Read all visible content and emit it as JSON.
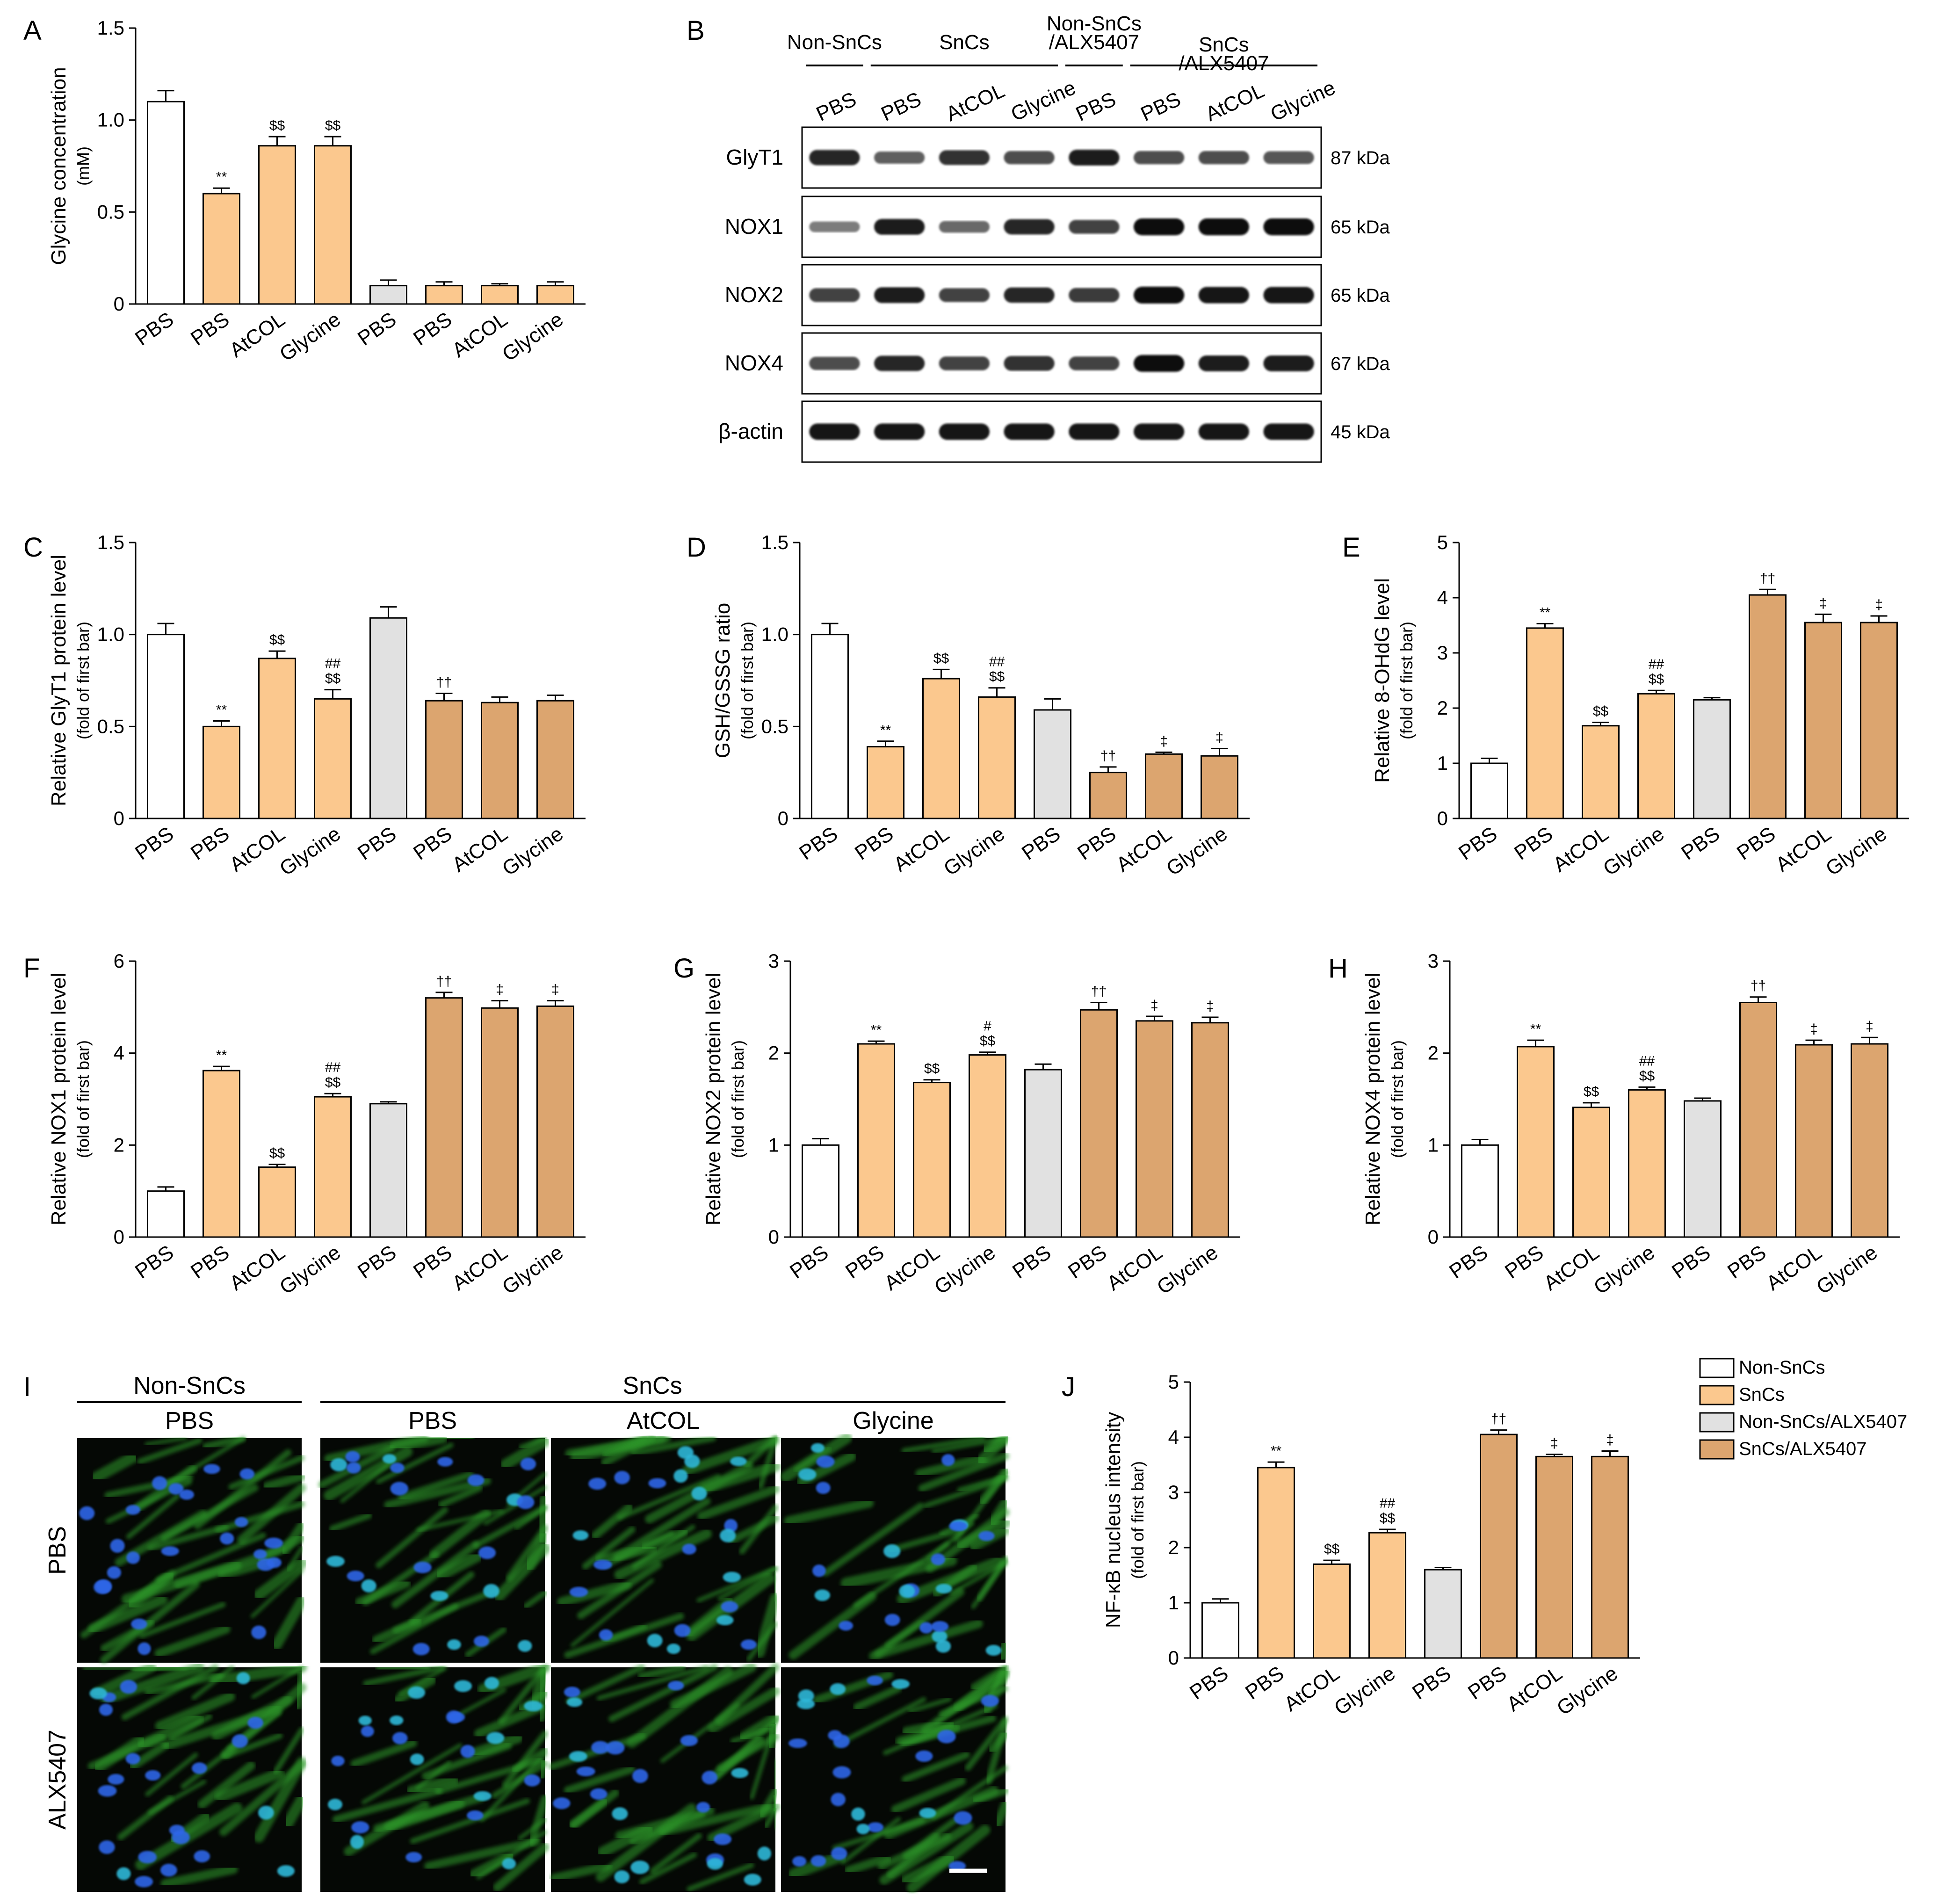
{
  "colors": {
    "nonsncs": "#ffffff",
    "sncs": "#fbc88e",
    "nonsncs_alx": "#e1e1e1",
    "sncs_alx": "#dca56f",
    "green_stain": "#2f9b2a",
    "nucleus": "#2f66e8",
    "stroke": "#000000"
  },
  "panel_letters": [
    "A",
    "B",
    "C",
    "D",
    "E",
    "F",
    "G",
    "H",
    "I",
    "J"
  ],
  "bar_labels": [
    "PBS",
    "PBS",
    "AtCOL",
    "Glycine",
    "PBS",
    "PBS",
    "AtCOL",
    "Glycine"
  ],
  "legend": {
    "entries": [
      "Non-SnCs",
      "SnCs",
      "Non-SnCs/ALX5407",
      "SnCs/ALX5407"
    ],
    "position": "top-right of panel J"
  },
  "chart_data": [
    {
      "panel": "A",
      "type": "bar",
      "ylabel": "Glycine concentration",
      "ylabel2": "(mM)",
      "ylim": [
        0,
        1.5
      ],
      "yticks": [
        "0",
        "0.5",
        "1.0",
        "1.5"
      ],
      "categories": [
        "PBS",
        "PBS",
        "AtCOL",
        "Glycine",
        "PBS",
        "PBS",
        "AtCOL",
        "Glycine"
      ],
      "values": [
        1.1,
        0.6,
        0.86,
        0.86,
        0.1,
        0.1,
        0.1,
        0.1
      ],
      "errors": [
        0.06,
        0.03,
        0.05,
        0.05,
        0.03,
        0.02,
        0.01,
        0.02
      ],
      "groups": [
        "nonsncs",
        "sncs",
        "sncs",
        "sncs",
        "nonsncs_alx",
        "sncs",
        "sncs",
        "sncs"
      ],
      "annotations": [
        {
          "bar": 1,
          "lines": [
            "**"
          ]
        },
        {
          "bar": 2,
          "lines": [
            "$$"
          ]
        },
        {
          "bar": 3,
          "lines": [
            "$$"
          ]
        }
      ]
    },
    {
      "panel": "C",
      "type": "bar",
      "ylabel": "Relative GlyT1 protein level",
      "ylabel2": "(fold of first bar)",
      "ylim": [
        0,
        1.5
      ],
      "yticks": [
        "0",
        "0.5",
        "1.0",
        "1.5"
      ],
      "categories": [
        "PBS",
        "PBS",
        "AtCOL",
        "Glycine",
        "PBS",
        "PBS",
        "AtCOL",
        "Glycine"
      ],
      "values": [
        1.0,
        0.5,
        0.87,
        0.65,
        1.09,
        0.64,
        0.63,
        0.64
      ],
      "errors": [
        0.06,
        0.03,
        0.04,
        0.05,
        0.06,
        0.04,
        0.03,
        0.03
      ],
      "groups": [
        "nonsncs",
        "sncs",
        "sncs",
        "sncs",
        "nonsncs_alx",
        "sncs_alx",
        "sncs_alx",
        "sncs_alx"
      ],
      "annotations": [
        {
          "bar": 1,
          "lines": [
            "**"
          ]
        },
        {
          "bar": 2,
          "lines": [
            "$$"
          ]
        },
        {
          "bar": 3,
          "lines": [
            "##",
            "$$"
          ]
        },
        {
          "bar": 5,
          "lines": [
            "††"
          ]
        }
      ]
    },
    {
      "panel": "D",
      "type": "bar",
      "ylabel": "GSH/GSSG ratio",
      "ylabel2": "(fold of first bar)",
      "ylim": [
        0,
        1.5
      ],
      "yticks": [
        "0",
        "0.5",
        "1.0",
        "1.5"
      ],
      "categories": [
        "PBS",
        "PBS",
        "AtCOL",
        "Glycine",
        "PBS",
        "PBS",
        "AtCOL",
        "Glycine"
      ],
      "values": [
        1.0,
        0.39,
        0.76,
        0.66,
        0.59,
        0.25,
        0.35,
        0.34
      ],
      "errors": [
        0.06,
        0.03,
        0.05,
        0.05,
        0.06,
        0.03,
        0.01,
        0.04
      ],
      "groups": [
        "nonsncs",
        "sncs",
        "sncs",
        "sncs",
        "nonsncs_alx",
        "sncs_alx",
        "sncs_alx",
        "sncs_alx"
      ],
      "annotations": [
        {
          "bar": 1,
          "lines": [
            "**"
          ]
        },
        {
          "bar": 2,
          "lines": [
            "$$"
          ]
        },
        {
          "bar": 3,
          "lines": [
            "##",
            "$$"
          ]
        },
        {
          "bar": 5,
          "lines": [
            "††"
          ]
        },
        {
          "bar": 6,
          "lines": [
            "‡"
          ]
        },
        {
          "bar": 7,
          "lines": [
            "‡"
          ]
        }
      ]
    },
    {
      "panel": "E",
      "type": "bar",
      "ylabel": "Relative 8-OHdG level",
      "ylabel2": "(fold of first bar)",
      "ylim": [
        0,
        5
      ],
      "yticks": [
        "0",
        "1",
        "2",
        "3",
        "4",
        "5"
      ],
      "categories": [
        "PBS",
        "PBS",
        "AtCOL",
        "Glycine",
        "PBS",
        "PBS",
        "AtCOL",
        "Glycine"
      ],
      "values": [
        1.0,
        3.45,
        1.68,
        2.26,
        2.15,
        4.05,
        3.55,
        3.55
      ],
      "errors": [
        0.09,
        0.08,
        0.06,
        0.06,
        0.04,
        0.1,
        0.15,
        0.12
      ],
      "groups": [
        "nonsncs",
        "sncs",
        "sncs",
        "sncs",
        "nonsncs_alx",
        "sncs_alx",
        "sncs_alx",
        "sncs_alx"
      ],
      "annotations": [
        {
          "bar": 1,
          "lines": [
            "**"
          ]
        },
        {
          "bar": 2,
          "lines": [
            "$$"
          ]
        },
        {
          "bar": 3,
          "lines": [
            "##",
            "$$"
          ]
        },
        {
          "bar": 5,
          "lines": [
            "††"
          ]
        },
        {
          "bar": 6,
          "lines": [
            "‡"
          ]
        },
        {
          "bar": 7,
          "lines": [
            "‡"
          ]
        }
      ]
    },
    {
      "panel": "F",
      "type": "bar",
      "ylabel": "Relative NOX1 protein level",
      "ylabel2": "(fold of first bar)",
      "ylim": [
        0,
        6
      ],
      "yticks": [
        "0",
        "2",
        "4",
        "6"
      ],
      "categories": [
        "PBS",
        "PBS",
        "AtCOL",
        "Glycine",
        "PBS",
        "PBS",
        "AtCOL",
        "Glycine"
      ],
      "values": [
        1.0,
        3.62,
        1.52,
        3.05,
        2.9,
        5.2,
        4.98,
        5.02
      ],
      "errors": [
        0.09,
        0.09,
        0.06,
        0.07,
        0.04,
        0.12,
        0.16,
        0.12
      ],
      "groups": [
        "nonsncs",
        "sncs",
        "sncs",
        "sncs",
        "nonsncs_alx",
        "sncs_alx",
        "sncs_alx",
        "sncs_alx"
      ],
      "annotations": [
        {
          "bar": 1,
          "lines": [
            "**"
          ]
        },
        {
          "bar": 2,
          "lines": [
            "$$"
          ]
        },
        {
          "bar": 3,
          "lines": [
            "##",
            "$$"
          ]
        },
        {
          "bar": 5,
          "lines": [
            "††"
          ]
        },
        {
          "bar": 6,
          "lines": [
            "‡"
          ]
        },
        {
          "bar": 7,
          "lines": [
            "‡"
          ]
        }
      ]
    },
    {
      "panel": "G",
      "type": "bar",
      "ylabel": "Relative NOX2 protein level",
      "ylabel2": "(fold of first bar)",
      "ylim": [
        0,
        3
      ],
      "yticks": [
        "0",
        "1",
        "2",
        "3"
      ],
      "categories": [
        "PBS",
        "PBS",
        "AtCOL",
        "Glycine",
        "PBS",
        "PBS",
        "AtCOL",
        "Glycine"
      ],
      "values": [
        1.0,
        2.1,
        1.68,
        1.98,
        1.82,
        2.47,
        2.35,
        2.33
      ],
      "errors": [
        0.07,
        0.03,
        0.03,
        0.03,
        0.06,
        0.08,
        0.05,
        0.06
      ],
      "groups": [
        "nonsncs",
        "sncs",
        "sncs",
        "sncs",
        "nonsncs_alx",
        "sncs_alx",
        "sncs_alx",
        "sncs_alx"
      ],
      "annotations": [
        {
          "bar": 1,
          "lines": [
            "**"
          ]
        },
        {
          "bar": 2,
          "lines": [
            "$$"
          ]
        },
        {
          "bar": 3,
          "lines": [
            "#",
            "$$"
          ]
        },
        {
          "bar": 5,
          "lines": [
            "††"
          ]
        },
        {
          "bar": 6,
          "lines": [
            "‡"
          ]
        },
        {
          "bar": 7,
          "lines": [
            "‡"
          ]
        }
      ]
    },
    {
      "panel": "H",
      "type": "bar",
      "ylabel": "Relative NOX4 protein level",
      "ylabel2": "(fold of first bar)",
      "ylim": [
        0,
        3
      ],
      "yticks": [
        "0",
        "1",
        "2",
        "3"
      ],
      "categories": [
        "PBS",
        "PBS",
        "AtCOL",
        "Glycine",
        "PBS",
        "PBS",
        "AtCOL",
        "Glycine"
      ],
      "values": [
        1.0,
        2.07,
        1.41,
        1.6,
        1.48,
        2.55,
        2.09,
        2.1
      ],
      "errors": [
        0.06,
        0.07,
        0.05,
        0.03,
        0.03,
        0.06,
        0.05,
        0.07
      ],
      "groups": [
        "nonsncs",
        "sncs",
        "sncs",
        "sncs",
        "nonsncs_alx",
        "sncs_alx",
        "sncs_alx",
        "sncs_alx"
      ],
      "annotations": [
        {
          "bar": 1,
          "lines": [
            "**"
          ]
        },
        {
          "bar": 2,
          "lines": [
            "$$"
          ]
        },
        {
          "bar": 3,
          "lines": [
            "##",
            "$$"
          ]
        },
        {
          "bar": 5,
          "lines": [
            "††"
          ]
        },
        {
          "bar": 6,
          "lines": [
            "‡"
          ]
        },
        {
          "bar": 7,
          "lines": [
            "‡"
          ]
        }
      ]
    },
    {
      "panel": "J",
      "type": "bar",
      "ylabel": "NF-κB nucleus intensity",
      "ylabel2": "(fold of first bar)",
      "ylim": [
        0,
        5
      ],
      "yticks": [
        "0",
        "1",
        "2",
        "3",
        "4",
        "5"
      ],
      "categories": [
        "PBS",
        "PBS",
        "AtCOL",
        "Glycine",
        "PBS",
        "PBS",
        "AtCOL",
        "Glycine"
      ],
      "values": [
        1.0,
        3.45,
        1.7,
        2.27,
        1.6,
        4.05,
        3.65,
        3.65
      ],
      "errors": [
        0.07,
        0.1,
        0.07,
        0.06,
        0.04,
        0.08,
        0.04,
        0.1
      ],
      "groups": [
        "nonsncs",
        "sncs",
        "sncs",
        "sncs",
        "nonsncs_alx",
        "sncs_alx",
        "sncs_alx",
        "sncs_alx"
      ],
      "annotations": [
        {
          "bar": 1,
          "lines": [
            "**"
          ]
        },
        {
          "bar": 2,
          "lines": [
            "$$"
          ]
        },
        {
          "bar": 3,
          "lines": [
            "##",
            "$$"
          ]
        },
        {
          "bar": 5,
          "lines": [
            "††"
          ]
        },
        {
          "bar": 6,
          "lines": [
            "‡"
          ]
        },
        {
          "bar": 7,
          "lines": [
            "‡"
          ]
        }
      ]
    }
  ],
  "western_blot": {
    "panel": "B",
    "groups": [
      "Non-SnCs",
      "SnCs",
      "Non-SnCs\n/ALX5407",
      "SnCs\n/ALX5407"
    ],
    "lanes": [
      "PBS",
      "PBS",
      "AtCOL",
      "Glycine",
      "PBS",
      "PBS",
      "AtCOL",
      "Glycine"
    ],
    "rows": [
      {
        "name": "GlyT1",
        "size": "87 kDa",
        "intensity": [
          0.85,
          0.55,
          0.8,
          0.65,
          0.9,
          0.65,
          0.65,
          0.6
        ]
      },
      {
        "name": "NOX1",
        "size": "65 kDa",
        "intensity": [
          0.4,
          0.9,
          0.5,
          0.85,
          0.7,
          1.0,
          1.0,
          1.0
        ]
      },
      {
        "name": "NOX2",
        "size": "65 kDa",
        "intensity": [
          0.7,
          0.9,
          0.7,
          0.85,
          0.75,
          1.0,
          0.95,
          0.95
        ]
      },
      {
        "name": "NOX4",
        "size": "67 kDa",
        "intensity": [
          0.65,
          0.85,
          0.7,
          0.8,
          0.7,
          1.0,
          0.9,
          0.9
        ]
      },
      {
        "name": "β-actin",
        "size": "45 kDa",
        "intensity": [
          0.95,
          0.95,
          0.95,
          0.95,
          0.95,
          0.95,
          0.95,
          0.95
        ]
      }
    ]
  },
  "micrographs": {
    "panel": "I",
    "group_headers": [
      "Non-SnCs",
      "SnCs"
    ],
    "column_headers": [
      "PBS",
      "PBS",
      "AtCOL",
      "Glycine"
    ],
    "row_labels": [
      "PBS",
      "ALX5407"
    ]
  }
}
